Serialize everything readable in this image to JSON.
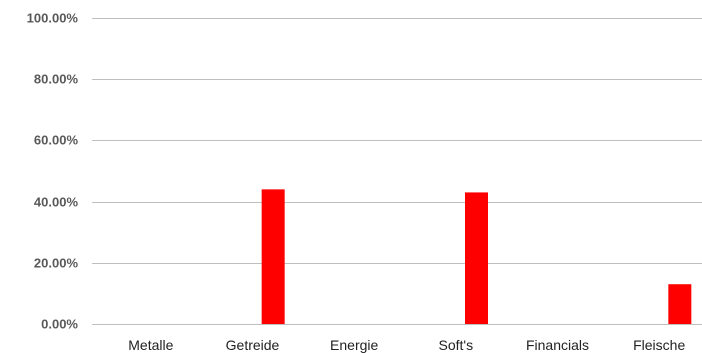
{
  "chart_data": {
    "type": "bar",
    "categories": [
      "Metalle",
      "Getreide",
      "Energie",
      "Soft's",
      "Financials",
      "Fleische"
    ],
    "values": [
      0,
      44.0,
      0,
      43.0,
      0,
      13.0
    ],
    "y_unit": "%",
    "ylim": [
      0,
      100
    ],
    "yticks": [
      0,
      20,
      40,
      60,
      80,
      100
    ],
    "ytick_labels": [
      "0.00%",
      "20.00%",
      "40.00%",
      "60.00%",
      "80.00%",
      "100.00%"
    ],
    "title": "",
    "xlabel": "",
    "ylabel": "",
    "grid": true,
    "legend": "none",
    "bar_color": "#ff0000"
  }
}
